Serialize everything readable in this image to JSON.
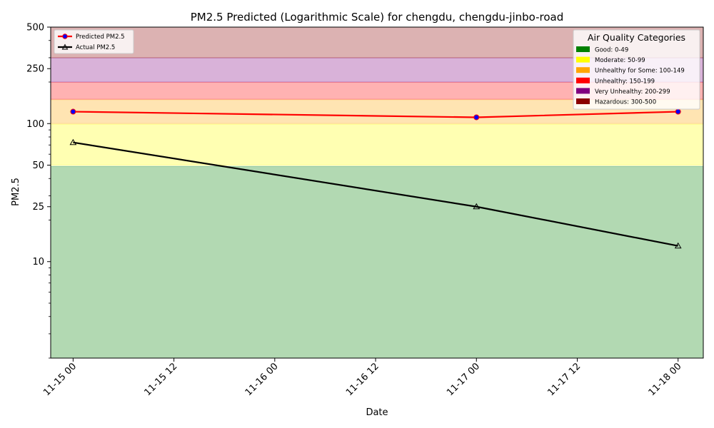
{
  "chart_data": {
    "type": "line",
    "title": "PM2.5 Predicted (Logarithmic Scale) for chengdu, chengdu-jinbo-road",
    "xlabel": "Date",
    "ylabel": "PM2.5",
    "yscale": "log",
    "ylim": [
      2,
      500
    ],
    "xlim": [
      "2024-11-14 21:20",
      "2024-11-18 03:00"
    ],
    "x_ticks": [
      "11-15 00",
      "11-15 12",
      "11-16 00",
      "11-16 12",
      "11-17 00",
      "11-17 12",
      "11-18 00"
    ],
    "x_tick_values": [
      "2024-11-15 00:00",
      "2024-11-15 12:00",
      "2024-11-16 00:00",
      "2024-11-16 12:00",
      "2024-11-17 00:00",
      "2024-11-17 12:00",
      "2024-11-18 00:00"
    ],
    "y_ticks": [
      10,
      25,
      50,
      100,
      250,
      500
    ],
    "x": [
      "2024-11-15 00:00",
      "2024-11-17 00:00",
      "2024-11-18 00:00"
    ],
    "series": [
      {
        "name": "Predicted PM2.5",
        "values": [
          122,
          111,
          122
        ],
        "color": "#ff0000",
        "marker": "circle",
        "marker_color": "#0000ff"
      },
      {
        "name": "Actual PM2.5",
        "values": [
          73,
          25,
          13
        ],
        "color": "#000000",
        "marker": "triangle",
        "marker_color": "#000000"
      }
    ],
    "bands_legend_title": "Air Quality Categories",
    "bands": [
      {
        "label": "Good: 0-49",
        "from": 0,
        "to": 49,
        "color": "#008000"
      },
      {
        "label": "Moderate: 50-99",
        "from": 50,
        "to": 99,
        "color": "#ffff00"
      },
      {
        "label": "Unhealthy for Some: 100-149",
        "from": 100,
        "to": 149,
        "color": "#ffa500"
      },
      {
        "label": "Unhealthy: 150-199",
        "from": 150,
        "to": 199,
        "color": "#ff0000"
      },
      {
        "label": "Very Unhealthy: 200-299",
        "from": 200,
        "to": 299,
        "color": "#800080"
      },
      {
        "label": "Hazardous: 300-500",
        "from": 300,
        "to": 500,
        "color": "#8b0000"
      }
    ],
    "grid": false,
    "legend_position": "top-left",
    "bands_legend_position": "top-right"
  }
}
